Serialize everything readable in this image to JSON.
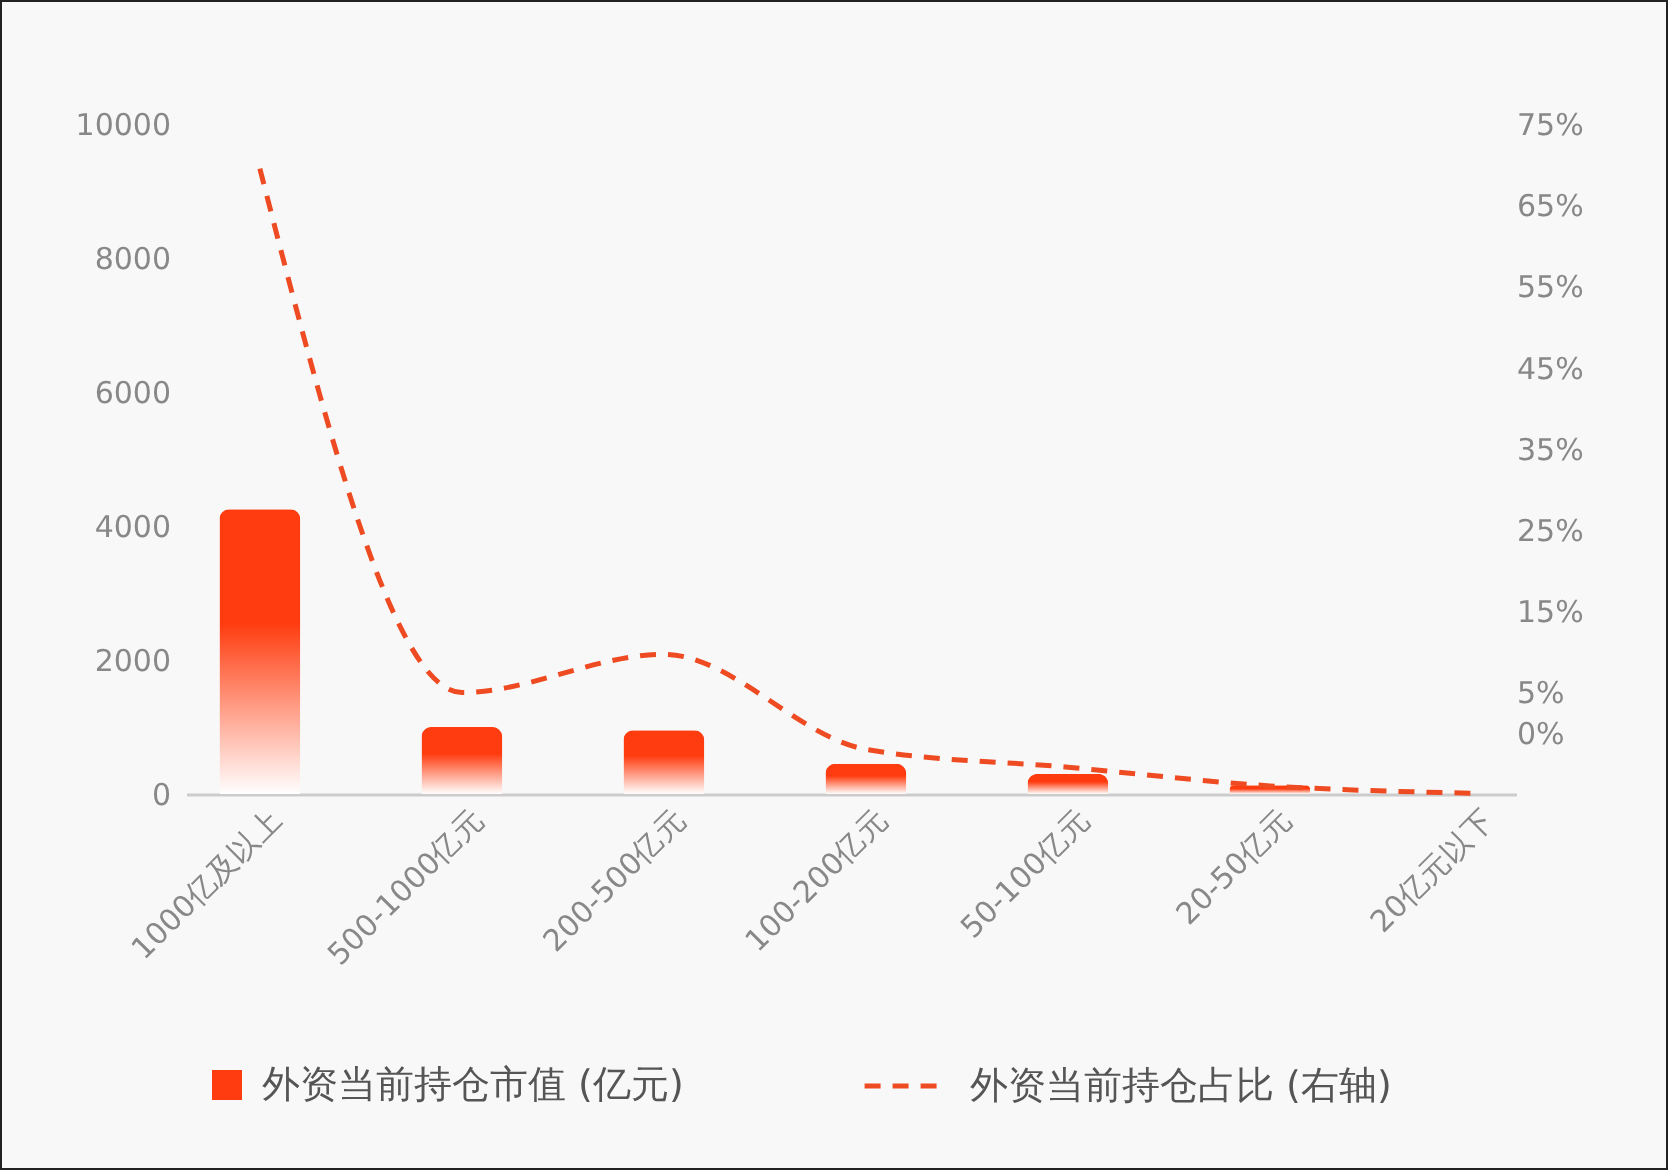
{
  "chart_data": {
    "type": "bar",
    "categories": [
      "1000亿及以上",
      "500-1000亿元",
      "200-500亿元",
      "100-200亿元",
      "50-100亿元",
      "20-50亿元",
      "20亿元以下"
    ],
    "series": [
      {
        "name": "外资当前持仓市值 (亿元)",
        "color": "#ff3c0f",
        "values": [
          4250,
          1000,
          950,
          450,
          300,
          130,
          null
        ]
      },
      {
        "name": "外资当前持仓占比 (右轴)",
        "type": "line",
        "axis": "y2",
        "color": "#ee4b22",
        "line_style": "dashed",
        "values": [
          69.5,
          5,
          9.7,
          -2,
          -4.2,
          -6.5,
          -7.4
        ]
      }
    ],
    "ylim": [
      0,
      10000
    ],
    "yticks": [
      0,
      2000,
      4000,
      6000,
      8000,
      10000
    ],
    "y2lim": [
      -7.5,
      75
    ],
    "y2ticks": [
      {
        "value": 0,
        "label": "0%"
      },
      {
        "value": 5,
        "label": "5%"
      },
      {
        "value": 15,
        "label": "15%"
      },
      {
        "value": 25,
        "label": "25%"
      },
      {
        "value": 35,
        "label": "35%"
      },
      {
        "value": 45,
        "label": "45%"
      },
      {
        "value": 55,
        "label": "55%"
      },
      {
        "value": 65,
        "label": "65%"
      },
      {
        "value": 75,
        "label": "75%"
      }
    ],
    "legend": "bottom"
  }
}
